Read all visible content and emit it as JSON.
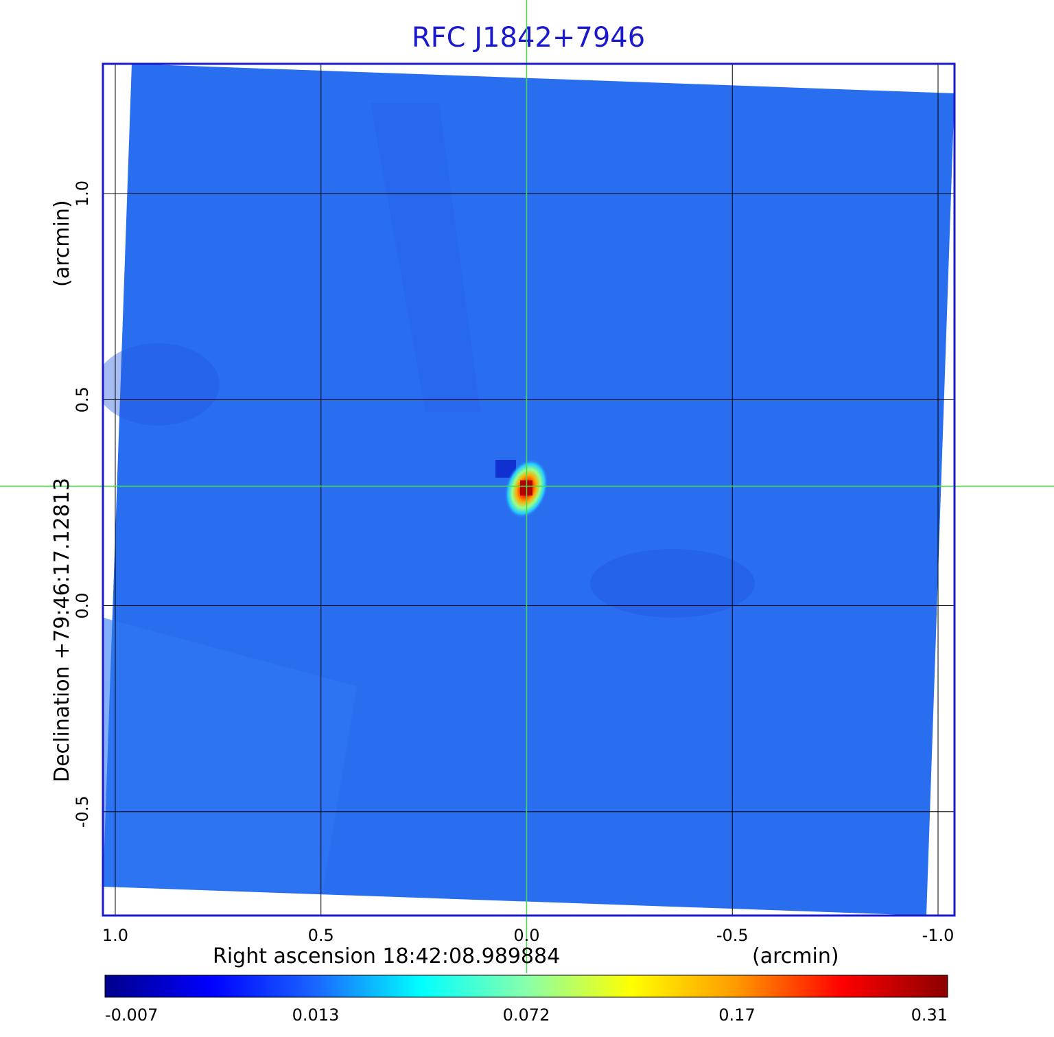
{
  "chart_data": {
    "type": "heatmap",
    "title": "RFC J1842+7946",
    "xlabel": "Right ascension  18:42:08.989884",
    "xunit": "(arcmin)",
    "ylabel": "Declination  +79:46:17.12813",
    "yunit": "(arcmin)",
    "x_ticks": [
      "1.0",
      "0.5",
      "0.0",
      "-0.5",
      "-1.0"
    ],
    "x_tick_values": [
      1.0,
      0.5,
      0.0,
      -0.5,
      -1.0
    ],
    "y_ticks": [
      "1.0",
      "0.5",
      "0.0",
      "-0.5"
    ],
    "y_tick_values": [
      1.0,
      0.5,
      0.0,
      -0.5
    ],
    "xlim": [
      1.03,
      -1.04
    ],
    "ylim": [
      -0.752,
      1.315
    ],
    "grid": true,
    "crosshair": {
      "x": 0.0,
      "y": 0.29,
      "color": "#44dd44"
    },
    "source_peak": {
      "x": 0.0,
      "y": 0.28,
      "value": 0.31
    },
    "colorbar": {
      "labels": [
        "-0.007",
        "0.013",
        "0.072",
        "0.17",
        "0.31"
      ],
      "colors": [
        "#00008b",
        "#0000ff",
        "#1a66ff",
        "#00ffff",
        "#88ffaa",
        "#ffff00",
        "#ff9900",
        "#ff0000",
        "#8b0000"
      ],
      "position": "bottom"
    },
    "background_color": "#2a6ef0",
    "frame_color": "#1a1acc"
  }
}
